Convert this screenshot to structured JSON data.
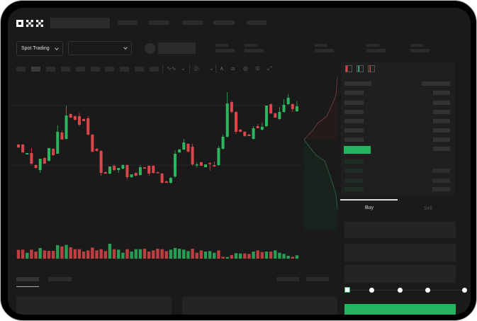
{
  "header": {
    "logo": "OKX",
    "nav_items": [
      "",
      "",
      "",
      "",
      ""
    ]
  },
  "toolbar": {
    "market_dropdown": "Spot Trading",
    "pair_dropdown": "",
    "icons": [
      "indicator-icon",
      "chevron-down-icon",
      "candle-type-icon",
      "chevron-down-icon",
      "line-draw-icon",
      "ruler-icon",
      "camera-icon",
      "settings-icon",
      "fullscreen-icon"
    ]
  },
  "orderbook": {
    "view_icons": [
      "orderbook-both-icon",
      "orderbook-bids-icon",
      "orderbook-asks-icon"
    ]
  },
  "trade": {
    "tabs": [
      "Buy",
      "Sell"
    ],
    "active_tab": "Buy",
    "slider_value": 0
  },
  "colors": {
    "up": "#2bb55f",
    "down": "#d9474a",
    "background": "#1a1a1a"
  },
  "chart_data": {
    "type": "candlestick",
    "candles": [
      [
        97,
        98,
        92,
        93
      ],
      [
        97,
        98,
        85,
        86
      ],
      [
        83,
        85,
        83,
        85
      ],
      [
        85,
        92,
        68,
        70
      ],
      [
        68,
        69,
        63,
        64
      ],
      [
        61,
        77,
        57,
        77
      ],
      [
        78,
        79,
        70,
        70
      ],
      [
        74,
        92,
        73,
        92
      ],
      [
        91,
        92,
        81,
        82
      ],
      [
        84,
        124,
        84,
        115
      ],
      [
        114,
        117,
        104,
        104
      ],
      [
        105,
        152,
        104,
        138
      ],
      [
        140,
        141,
        135,
        135
      ],
      [
        137,
        138,
        131,
        132
      ],
      [
        137,
        142,
        123,
        125
      ],
      [
        133,
        134,
        130,
        130
      ],
      [
        134,
        137,
        110,
        111
      ],
      [
        111,
        112,
        86,
        87
      ],
      [
        91,
        92,
        87,
        88
      ],
      [
        88,
        89,
        53,
        57
      ],
      [
        58,
        59,
        56,
        56
      ],
      [
        56,
        66,
        55,
        66
      ],
      [
        67,
        69,
        60,
        61
      ],
      [
        61,
        64,
        57,
        64
      ],
      [
        63,
        69,
        62,
        68
      ],
      [
        68,
        69,
        48,
        51
      ],
      [
        51,
        55,
        50,
        55
      ],
      [
        57,
        58,
        52,
        53
      ],
      [
        54,
        68,
        53,
        65
      ],
      [
        65,
        65,
        63,
        63
      ],
      [
        67,
        68,
        53,
        56
      ],
      [
        67,
        68,
        56,
        57
      ],
      [
        58,
        59,
        57,
        57
      ],
      [
        56,
        57,
        42,
        43
      ],
      [
        45,
        46,
        43,
        43
      ],
      [
        43,
        51,
        42,
        50
      ],
      [
        52,
        89,
        50,
        84
      ],
      [
        86,
        91,
        85,
        90
      ],
      [
        90,
        105,
        89,
        100
      ],
      [
        98,
        99,
        86,
        87
      ],
      [
        94,
        98,
        67,
        69
      ],
      [
        68,
        72,
        65,
        69
      ],
      [
        72,
        73,
        67,
        67
      ],
      [
        65,
        69,
        65,
        69
      ],
      [
        71,
        72,
        60,
        70
      ],
      [
        68,
        73,
        66,
        66
      ],
      [
        68,
        95,
        67,
        92
      ],
      [
        91,
        111,
        90,
        108
      ],
      [
        108,
        171,
        107,
        155
      ],
      [
        157,
        159,
        141,
        143
      ],
      [
        143,
        144,
        112,
        115
      ],
      [
        118,
        119,
        115,
        115
      ],
      [
        115,
        116,
        108,
        109
      ],
      [
        111,
        112,
        109,
        109
      ],
      [
        105,
        123,
        104,
        120
      ],
      [
        123,
        126,
        120,
        120
      ],
      [
        118,
        128,
        117,
        122
      ],
      [
        123,
        152,
        122,
        152
      ],
      [
        154,
        155,
        140,
        141
      ],
      [
        141,
        142,
        135,
        135
      ],
      [
        133,
        150,
        132,
        143
      ],
      [
        143,
        161,
        142,
        153
      ],
      [
        154,
        168,
        153,
        163
      ],
      [
        154,
        155,
        143,
        147
      ],
      [
        144,
        158,
        143,
        151
      ]
    ],
    "volume": [
      37,
      38,
      25,
      38,
      30,
      45,
      35,
      33,
      33,
      57,
      52,
      58,
      48,
      40,
      40,
      30,
      35,
      47,
      35,
      40,
      32,
      63,
      40,
      38,
      25,
      40,
      30,
      40,
      40,
      42,
      30,
      35,
      42,
      40,
      32,
      38,
      45,
      42,
      38,
      32,
      42,
      25,
      35,
      30,
      32,
      25,
      35,
      8,
      7,
      15,
      23,
      22,
      22,
      20,
      30,
      35,
      28,
      30,
      30,
      35,
      25,
      20,
      12,
      8,
      14
    ],
    "volume_direction": [
      "d",
      "d",
      "u",
      "d",
      "d",
      "u",
      "d",
      "d",
      "d",
      "u",
      "d",
      "u",
      "d",
      "d",
      "d",
      "d",
      "d",
      "d",
      "d",
      "d",
      "d",
      "u",
      "d",
      "u",
      "u",
      "d",
      "u",
      "u",
      "u",
      "d",
      "d",
      "d",
      "d",
      "d",
      "d",
      "u",
      "u",
      "u",
      "u",
      "u",
      "d",
      "d",
      "d",
      "u",
      "u",
      "u",
      "d",
      "d",
      "u",
      "d",
      "u",
      "u",
      "d",
      "d",
      "u",
      "d",
      "d",
      "u",
      "d",
      "u",
      "u",
      "u",
      "u",
      "d",
      "u"
    ],
    "grid": true
  }
}
